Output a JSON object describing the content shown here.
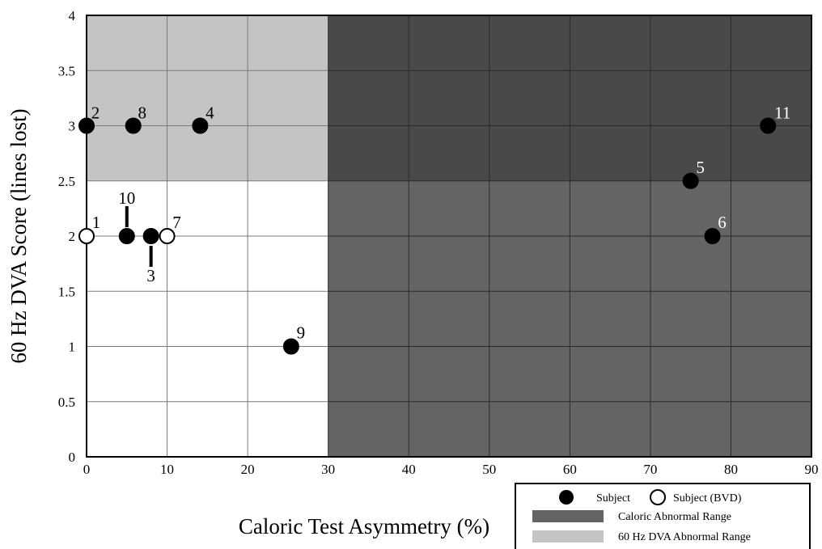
{
  "chart_data": {
    "type": "scatter",
    "xlabel": "Caloric Test Asymmetry (%)",
    "ylabel": "60 Hz DVA Score (lines lost)",
    "xlim": [
      0,
      90
    ],
    "ylim": [
      0,
      4
    ],
    "xticks": [
      "0",
      "10",
      "20",
      "30",
      "40",
      "50",
      "60",
      "70",
      "80",
      "90"
    ],
    "yticks": [
      "0",
      "0.5",
      "1",
      "1.5",
      "2",
      "2.5",
      "3",
      "3.5",
      "4"
    ],
    "grid": true,
    "regions": [
      {
        "name": "Caloric Abnormal Range",
        "x": [
          30,
          90
        ],
        "y": [
          0,
          4
        ],
        "color": "#646464"
      },
      {
        "name": "60 Hz DVA Abnormal Range",
        "x": [
          0,
          30
        ],
        "y": [
          2.5,
          4
        ],
        "color": "#c4c4c4"
      },
      {
        "name": "overlap",
        "x": [
          30,
          90
        ],
        "y": [
          2.5,
          4
        ],
        "color": "#494949"
      }
    ],
    "series": [
      {
        "name": "Subject",
        "filled": true,
        "points": [
          {
            "label": "2",
            "x": 0,
            "y": 3
          },
          {
            "label": "8",
            "x": 5.8,
            "y": 3
          },
          {
            "label": "4",
            "x": 14.1,
            "y": 3
          },
          {
            "label": "10",
            "x": 5,
            "y": 2
          },
          {
            "label": "3",
            "x": 8,
            "y": 2
          },
          {
            "label": "9",
            "x": 25.4,
            "y": 1
          },
          {
            "label": "5",
            "x": 75,
            "y": 2.5
          },
          {
            "label": "6",
            "x": 77.7,
            "y": 2
          },
          {
            "label": "11",
            "x": 84.6,
            "y": 3
          }
        ]
      },
      {
        "name": "Subject (BVD)",
        "filled": false,
        "points": [
          {
            "label": "1",
            "x": 0,
            "y": 2
          },
          {
            "label": "7",
            "x": 10,
            "y": 2
          }
        ]
      }
    ],
    "legend": {
      "placement": "bottom-right",
      "items": [
        "Subject",
        "Subject (BVD)",
        "Caloric Abnormal Range",
        "60 Hz DVA Abnormal Range"
      ]
    }
  }
}
